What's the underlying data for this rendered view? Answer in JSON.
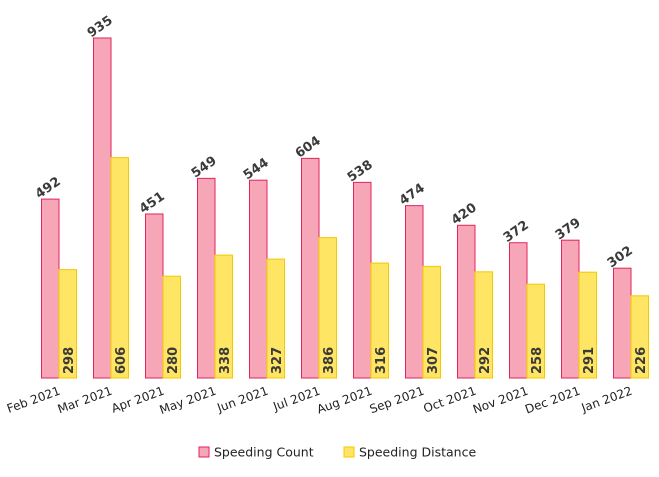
{
  "chart_data": {
    "type": "bar",
    "categories": [
      "Feb 2021",
      "Mar 2021",
      "Apr 2021",
      "May 2021",
      "Jun 2021",
      "Jul 2021",
      "Aug 2021",
      "Sep 2021",
      "Oct 2021",
      "Nov 2021",
      "Dec 2021",
      "Jan 2022"
    ],
    "series": [
      {
        "name": "Speeding Count",
        "values": [
          492,
          935,
          451,
          549,
          544,
          604,
          538,
          474,
          420,
          372,
          379,
          302
        ],
        "color": "#f7a6b8",
        "stroke": "#e0245e"
      },
      {
        "name": "Speeding Distance",
        "values": [
          298,
          606,
          280,
          338,
          327,
          386,
          316,
          307,
          292,
          258,
          291,
          226
        ],
        "color": "#fee563",
        "stroke": "#f5c800"
      }
    ],
    "ylim": [
      0,
      935
    ],
    "grid": false,
    "legend": "bottom",
    "data_labels": true
  }
}
